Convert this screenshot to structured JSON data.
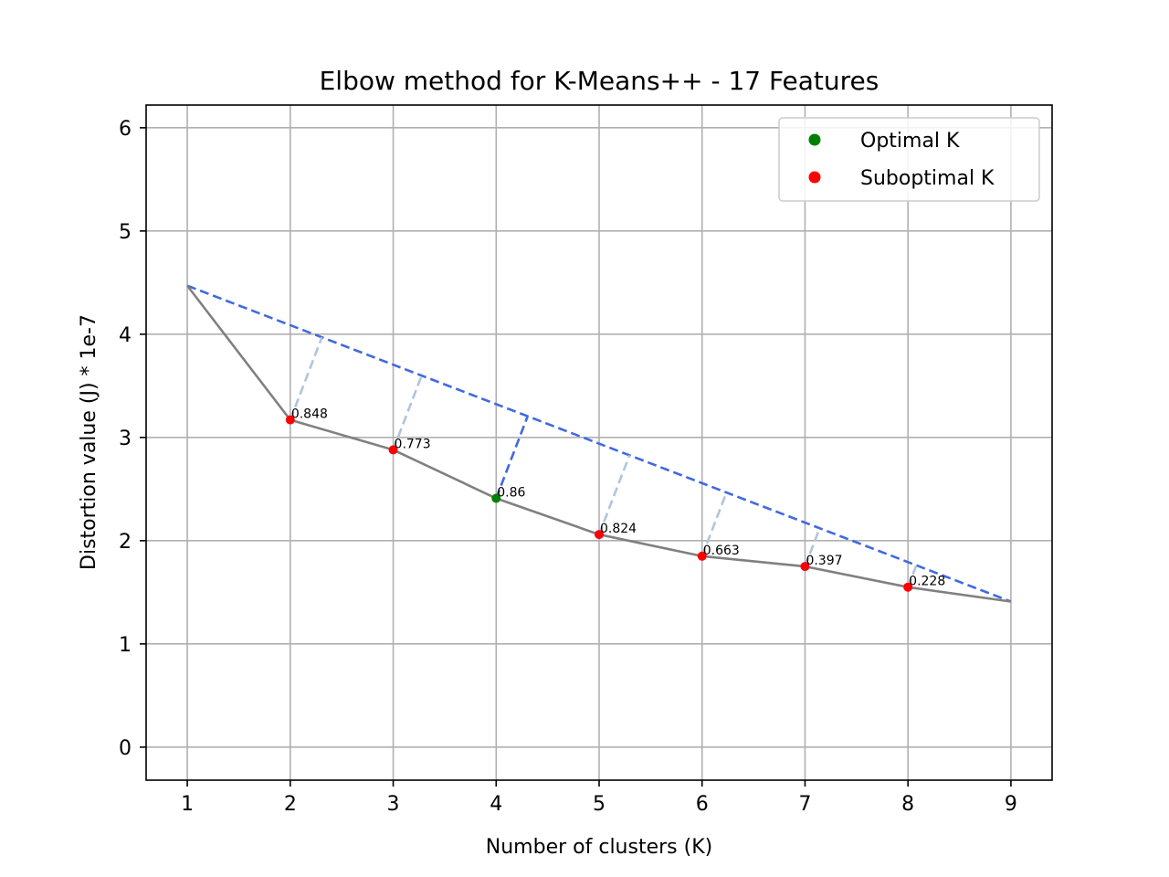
{
  "chart_data": {
    "type": "line",
    "title": "Elbow method for K-Means++ - 17 Features",
    "xlabel": "Number of clusters (K)",
    "ylabel": "Distortion value (J) * 1e-7",
    "xlim": [
      0.6,
      9.4
    ],
    "ylim": [
      -0.32,
      6.22
    ],
    "xticks": [
      1,
      2,
      3,
      4,
      5,
      6,
      7,
      8,
      9
    ],
    "yticks": [
      0,
      1,
      2,
      3,
      4,
      5,
      6
    ],
    "grid": true,
    "legend_position": "top-right",
    "x": [
      1,
      2,
      3,
      4,
      5,
      6,
      7,
      8,
      9
    ],
    "distortion": [
      4.47,
      3.17,
      2.88,
      2.41,
      2.06,
      1.85,
      1.75,
      1.55,
      1.41
    ],
    "annotations": [
      "",
      "0.848",
      "0.773",
      "0.86",
      "0.824",
      "0.663",
      "0.397",
      "0.228",
      ""
    ],
    "optimal_k": 4,
    "series": [
      {
        "name": "Optimal K",
        "color": "#008000",
        "points": [
          [
            4,
            2.41
          ]
        ]
      },
      {
        "name": "Suboptimal K",
        "color": "#ff0000",
        "points": [
          [
            2,
            3.17
          ],
          [
            3,
            2.88
          ],
          [
            5,
            2.06
          ],
          [
            6,
            1.85
          ],
          [
            7,
            1.75
          ],
          [
            8,
            1.55
          ]
        ]
      }
    ],
    "colors": {
      "curve": "#808080",
      "chord": "#4169e1",
      "perpendicular": "#b0c4de",
      "optimal_perpendicular": "#4169e1",
      "grid": "#b0b0b0"
    }
  }
}
